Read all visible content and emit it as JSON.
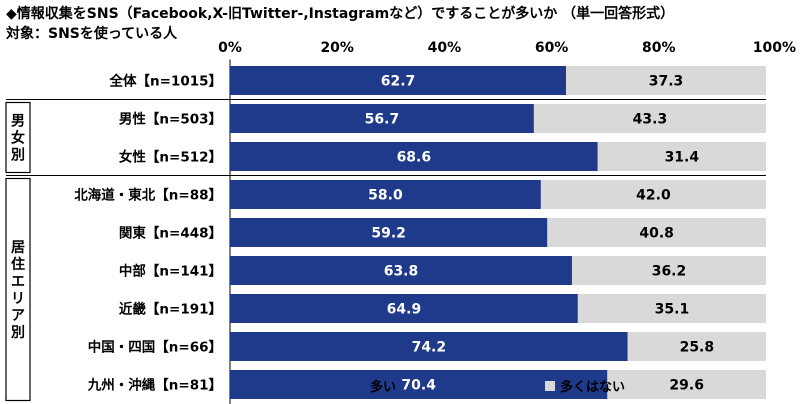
{
  "chart_data": {
    "type": "bar",
    "orientation": "horizontal",
    "stacked": true,
    "title": "◆情報収集をSNS（Facebook,X-旧Twitter-,Instagramなど）ですることが多いか （単一回答形式）",
    "subtitle": "対象：SNSを使っている人",
    "xlim": [
      0,
      100
    ],
    "ticks": [
      "0%",
      "20%",
      "40%",
      "60%",
      "80%",
      "100%"
    ],
    "categories": [
      "全体【n=1015】",
      "男性【n=503】",
      "女性【n=512】",
      "北海道・東北【n=88】",
      "関東【n=448】",
      "中部【n=141】",
      "近畿【n=191】",
      "中国・四国【n=66】",
      "九州・沖縄【n=81】"
    ],
    "groups": [
      {
        "label": "男女別",
        "from": 1,
        "to": 2
      },
      {
        "label": "居住エリア別",
        "from": 3,
        "to": 8
      }
    ],
    "series": [
      {
        "name": "多い",
        "color": "#1f3a8a",
        "values": [
          62.7,
          56.7,
          68.6,
          58.0,
          59.2,
          63.8,
          64.9,
          74.2,
          70.4
        ],
        "labels": [
          "62.7",
          "56.7",
          "68.6",
          "58.0",
          "59.2",
          "63.8",
          "64.9",
          "74.2",
          "70.4"
        ]
      },
      {
        "name": "多くはない",
        "color": "#d9d9d9",
        "values": [
          37.3,
          43.3,
          31.4,
          42.0,
          40.8,
          36.2,
          35.1,
          25.8,
          29.6
        ],
        "labels": [
          "37.3",
          "43.3",
          "31.4",
          "42.0",
          "40.8",
          "36.2",
          "35.1",
          "25.8",
          "29.6"
        ]
      }
    ],
    "legend_position": "bottom",
    "grid": false
  }
}
